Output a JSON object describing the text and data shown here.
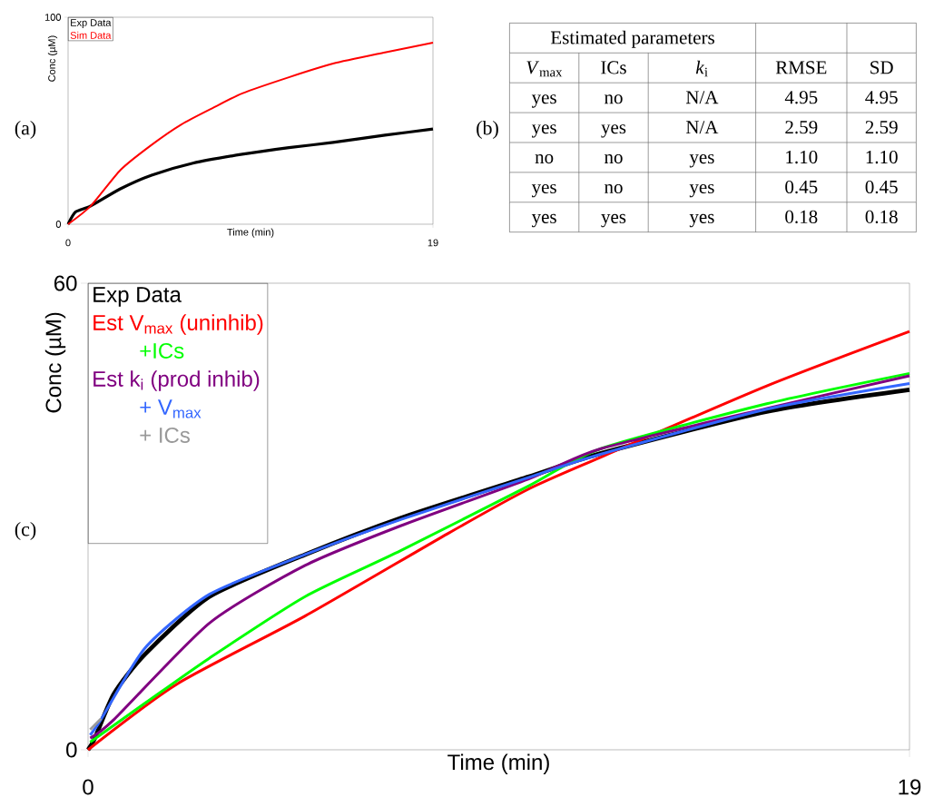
{
  "chart_data": [
    {
      "type": "line",
      "xlabel": "Time (min)",
      "ylabel": "Conc (µM)",
      "xlim": [
        0,
        19
      ],
      "ylim": [
        0,
        100
      ],
      "xticks": [
        0,
        19
      ],
      "yticks": [
        0,
        100
      ],
      "legend": "top left",
      "annotations": [
        "(a)"
      ],
      "series": [
        {
          "name": "Exp Data",
          "color": "#000000",
          "x": [
            0,
            0.4,
            1.18,
            2.7,
            4.35,
            6.5,
            9.07,
            11.5,
            13.8,
            16.5,
            19
          ],
          "values": [
            0,
            6,
            8.8,
            17,
            23.7,
            29.5,
            33.8,
            37,
            39.5,
            43,
            46
          ]
        },
        {
          "name": "Sim Data",
          "color": "#ff0000",
          "x": [
            0,
            1.18,
            2.74,
            4.3,
            5.9,
            7.5,
            9.07,
            11.5,
            13.8,
            16.5,
            19
          ],
          "values": [
            0,
            8.8,
            26.3,
            38,
            48.2,
            56,
            63.2,
            71,
            77.6,
            83,
            87.7
          ]
        }
      ]
    },
    {
      "type": "other",
      "annotations": [
        "(b)",
        "Estimated parameters",
        "*V*$_{max}$",
        "ICs",
        "*k*$_{i}$",
        "RMSE",
        "SD",
        "yes",
        "no",
        "N/A",
        "4.95",
        "4.95",
        "yes",
        "yes",
        "N/A",
        "2.59",
        "2.59",
        "no",
        "no",
        "yes",
        "1.10",
        "1.10",
        "yes",
        "no",
        "yes",
        "0.45",
        "0.45",
        "yes",
        "yes",
        "yes",
        "0.18",
        "0.18"
      ]
    },
    {
      "type": "line",
      "xlabel": "Time (min)",
      "ylabel": "Conc (µM)",
      "xlim": [
        0,
        19
      ],
      "ylim": [
        0,
        60
      ],
      "xticks": [
        0,
        19
      ],
      "yticks": [
        0,
        60
      ],
      "legend": "top left",
      "annotations": [
        "(c)"
      ],
      "series": [
        {
          "name": "Exp Data",
          "color": "#000000",
          "x": [
            0,
            0.15,
            0.6,
            1.32,
            2.81,
            5.02,
            7.23,
            10.18,
            11.85,
            15.7,
            19
          ],
          "values": [
            0,
            1.4,
            7.2,
            12.3,
            19.7,
            25.1,
            29.8,
            35.1,
            38.1,
            43.5,
            46.3
          ]
        },
        {
          "name": "Est V$_{max}$ (uninhib)",
          "color": "#ff0000",
          "x": [
            0,
            2.07,
            5.02,
            8.32,
            10.18,
            11.85,
            15.7,
            19
          ],
          "values": [
            0,
            8.5,
            17.2,
            27.8,
            33.5,
            37.6,
            46.8,
            53.8
          ]
        },
        {
          "name": "+ICs",
          "color": "#00ff00",
          "x": [
            0.05,
            1.32,
            2.81,
            5.02,
            7.23,
            10.18,
            11.85,
            15.7,
            19
          ],
          "values": [
            1.0,
            6.0,
            11.8,
            19.7,
            25.6,
            33.9,
            38.7,
            44.5,
            48.4
          ]
        },
        {
          "name": "Est k$_{i}$ (prod inhib)",
          "color": "#800080",
          "x": [
            0.05,
            0.6,
            2.81,
            5.02,
            7.23,
            10.18,
            11.85,
            15.7,
            19
          ],
          "values": [
            1.5,
            3.9,
            16.3,
            23.7,
            28.8,
            34.8,
            38.7,
            43.9,
            48.1
          ]
        },
        {
          "name": "+ V$_{max}$",
          "color": "#3366ff",
          "x": [
            0.05,
            0.3,
            1.32,
            2.81,
            5.02,
            7.23,
            10.18,
            11.85,
            15.7,
            19
          ],
          "values": [
            1.9,
            3.9,
            13.1,
            20.0,
            25.1,
            29.6,
            35.0,
            38.0,
            43.8,
            47.1
          ]
        },
        {
          "name": "+ ICs",
          "color": "#999999",
          "x": [
            0.05,
            0.3
          ],
          "values": [
            2.6,
            4.0
          ]
        }
      ]
    }
  ]
}
